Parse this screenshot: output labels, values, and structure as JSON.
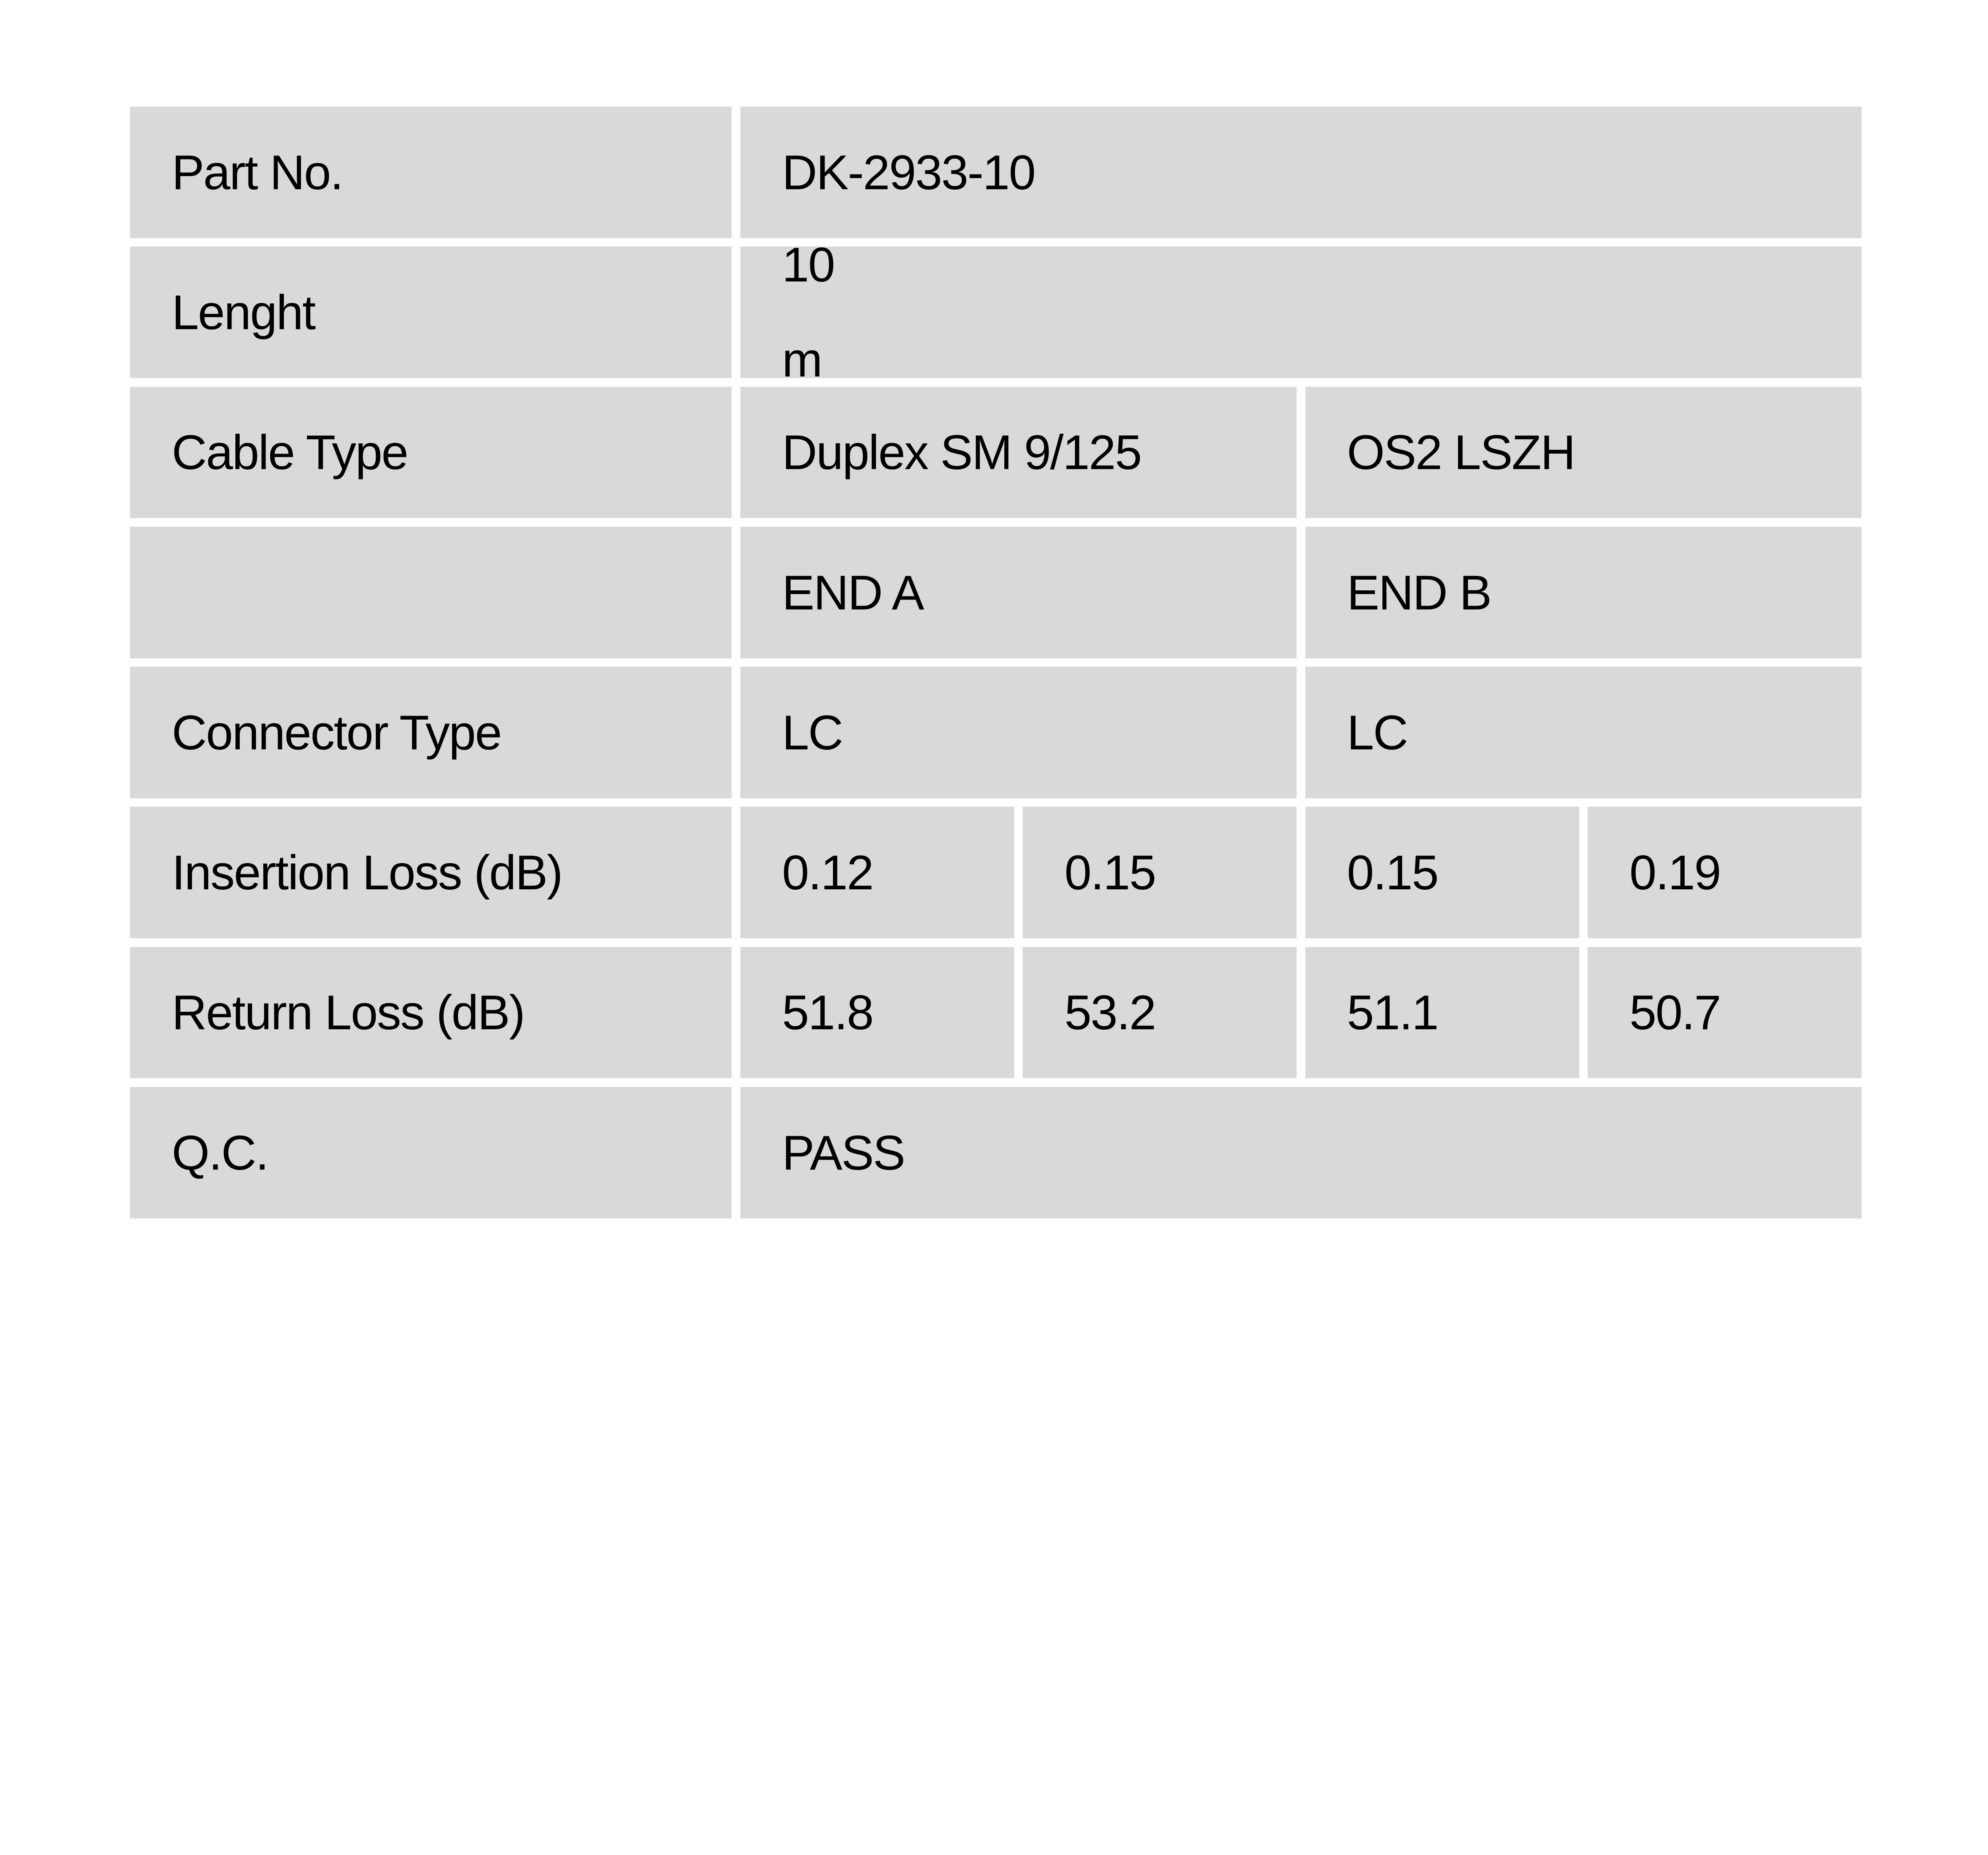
{
  "page": {
    "background_color": "#ffffff",
    "cell_background_color": "#d9d9d9",
    "text_color": "#000000"
  },
  "table": {
    "rows": [
      {
        "label": "Part No.",
        "cells": [
          {
            "text": "DK-2933-10",
            "span": 4
          }
        ]
      },
      {
        "label": "Lenght",
        "cells": [
          {
            "text": "10\n m",
            "span": 4
          }
        ]
      },
      {
        "label": "Cable Type",
        "cells": [
          {
            "text": "Duplex SM 9/125",
            "span": 2
          },
          {
            "text": "OS2 LSZH",
            "span": 2
          }
        ]
      },
      {
        "label": "",
        "cells": [
          {
            "text": "END A",
            "span": 2
          },
          {
            "text": "END B",
            "span": 2
          }
        ]
      },
      {
        "label": "Connector Type",
        "cells": [
          {
            "text": "LC",
            "span": 2
          },
          {
            "text": "LC",
            "span": 2
          }
        ]
      },
      {
        "label": "Insertion Loss (dB)",
        "cells": [
          {
            "text": "0.12",
            "span": 1
          },
          {
            "text": "0.15",
            "span": 1
          },
          {
            "text": "0.15",
            "span": 1
          },
          {
            "text": "0.19",
            "span": 1
          }
        ]
      },
      {
        "label": "Return Loss (dB)",
        "cells": [
          {
            "text": "51.8",
            "span": 1
          },
          {
            "text": "53.2",
            "span": 1
          },
          {
            "text": "51.1",
            "span": 1
          },
          {
            "text": "50.7",
            "span": 1
          }
        ]
      },
      {
        "label": "Q.C.",
        "cells": [
          {
            "text": "PASS",
            "span": 4
          }
        ]
      }
    ]
  }
}
